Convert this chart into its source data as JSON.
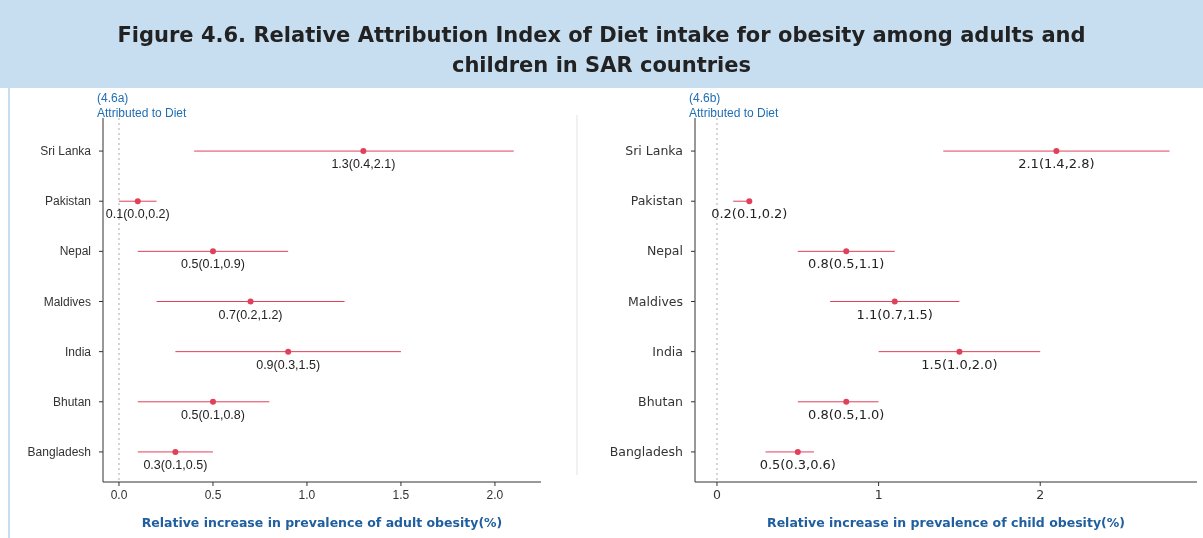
{
  "chart_data": [
    {
      "type": "scatter",
      "orientation": "horizontal",
      "title": "Figure 4.6. Relative Attribution Index of Diet intake for obesity among adults and children in SAR countries",
      "subtitle": "(4.6a)",
      "annotations": [
        "Attributed to Diet"
      ],
      "xlabel": "Relative increase in prevalence of adult obesity(%)",
      "categories": [
        "Sri Lanka",
        "Pakistan",
        "Nepal",
        "Maldives",
        "India",
        "Bhutan",
        "Bangladesh"
      ],
      "series": [
        {
          "color": "#e0405a",
          "values": [
            1.3,
            0.1,
            0.5,
            0.7,
            0.9,
            0.5,
            0.3
          ],
          "errors": [
            [
              0.4,
              2.1
            ],
            [
              0.0,
              0.2
            ],
            [
              0.1,
              0.9
            ],
            [
              0.2,
              1.2
            ],
            [
              0.3,
              1.5
            ],
            [
              0.1,
              0.8
            ],
            [
              0.1,
              0.5
            ]
          ],
          "value_labels": [
            "1.3(0.4,2.1)",
            "0.1(0.0,0.2)",
            "0.5(0.1,0.9)",
            "0.7(0.2,1.2)",
            "0.9(0.3,1.5)",
            "0.5(0.1,0.8)",
            "0.3(0.1,0.5)"
          ]
        }
      ],
      "xlim": [
        -0.085,
        2.245
      ],
      "xticks": [
        {
          "value": 0,
          "label": "0.0"
        },
        0.5,
        {
          "value": 1,
          "label": "1.0"
        },
        1.5,
        {
          "value": 2,
          "label": "2.0"
        }
      ],
      "ref_lines": [
        {
          "axis": "x",
          "value": 0,
          "color": "#aaaaaa",
          "line_style": "dotted"
        }
      ],
      "marker": "circle",
      "grid": false
    },
    {
      "type": "scatter",
      "orientation": "horizontal",
      "subtitle": "(4.6b)",
      "annotations": [
        "Attributed to Diet"
      ],
      "xlabel": "Relative increase in prevalence of child obesity(%)",
      "categories": [
        "Sri Lanka",
        "Pakistan",
        "Nepal",
        "Maldives",
        "India",
        "Bhutan",
        "Bangladesh"
      ],
      "series": [
        {
          "color": "#e0405a",
          "values": [
            2.1,
            0.2,
            0.8,
            1.1,
            1.5,
            0.8,
            0.5
          ],
          "errors": [
            [
              1.4,
              2.8
            ],
            [
              0.1,
              0.2
            ],
            [
              0.5,
              1.1
            ],
            [
              0.7,
              1.5
            ],
            [
              1.0,
              2.0
            ],
            [
              0.5,
              1.0
            ],
            [
              0.3,
              0.6
            ]
          ],
          "value_labels": [
            "2.1(1.4,2.8)",
            "0.2(0.1,0.2)",
            "0.8(0.5,1.1)",
            "1.1(0.7,1.5)",
            "1.5(1.0,2.0)",
            "0.8(0.5,1.0)",
            "0.5(0.3,0.6)"
          ]
        }
      ],
      "xlim": [
        -0.136,
        2.97
      ],
      "xticks": [
        0,
        1,
        2
      ],
      "ref_lines": [
        {
          "axis": "x",
          "value": 0,
          "color": "#aaaaaa",
          "line_style": "dotted"
        }
      ],
      "marker": "circle",
      "grid": false
    }
  ]
}
